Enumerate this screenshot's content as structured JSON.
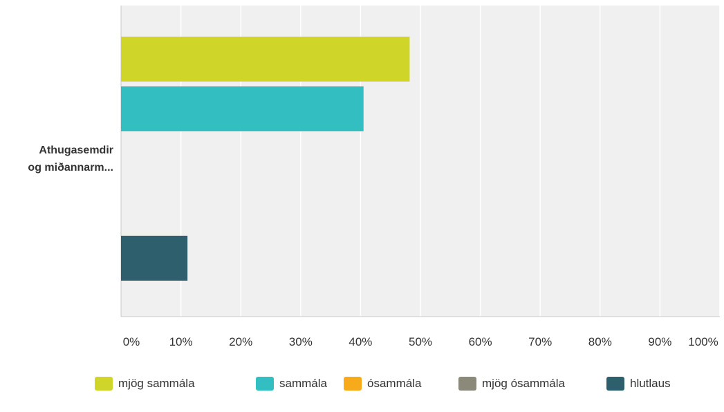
{
  "chart_data": {
    "type": "bar",
    "orientation": "horizontal",
    "categories": [
      "Athugasemdir og miðannarm..."
    ],
    "category_label_lines": [
      "Athugasemdir",
      "og miðannarm..."
    ],
    "series": [
      {
        "name": "mjög sammála",
        "values": [
          48.2
        ],
        "color": "#d0d52a"
      },
      {
        "name": "sammála",
        "values": [
          40.5
        ],
        "color": "#33bfc1"
      },
      {
        "name": "ósammála",
        "values": [
          0
        ],
        "color": "#f7ab1b"
      },
      {
        "name": "mjög ósammála",
        "values": [
          0
        ],
        "color": "#8b8a7a"
      },
      {
        "name": "hlutlaus",
        "values": [
          11.1
        ],
        "color": "#2d5f6c"
      }
    ],
    "xlim": [
      0,
      100
    ],
    "x_ticks": [
      "0%",
      "10%",
      "20%",
      "30%",
      "40%",
      "50%",
      "60%",
      "70%",
      "80%",
      "90%",
      "100%"
    ],
    "grid": true,
    "legend_position": "bottom",
    "plot_background": "#f0f0f0"
  }
}
